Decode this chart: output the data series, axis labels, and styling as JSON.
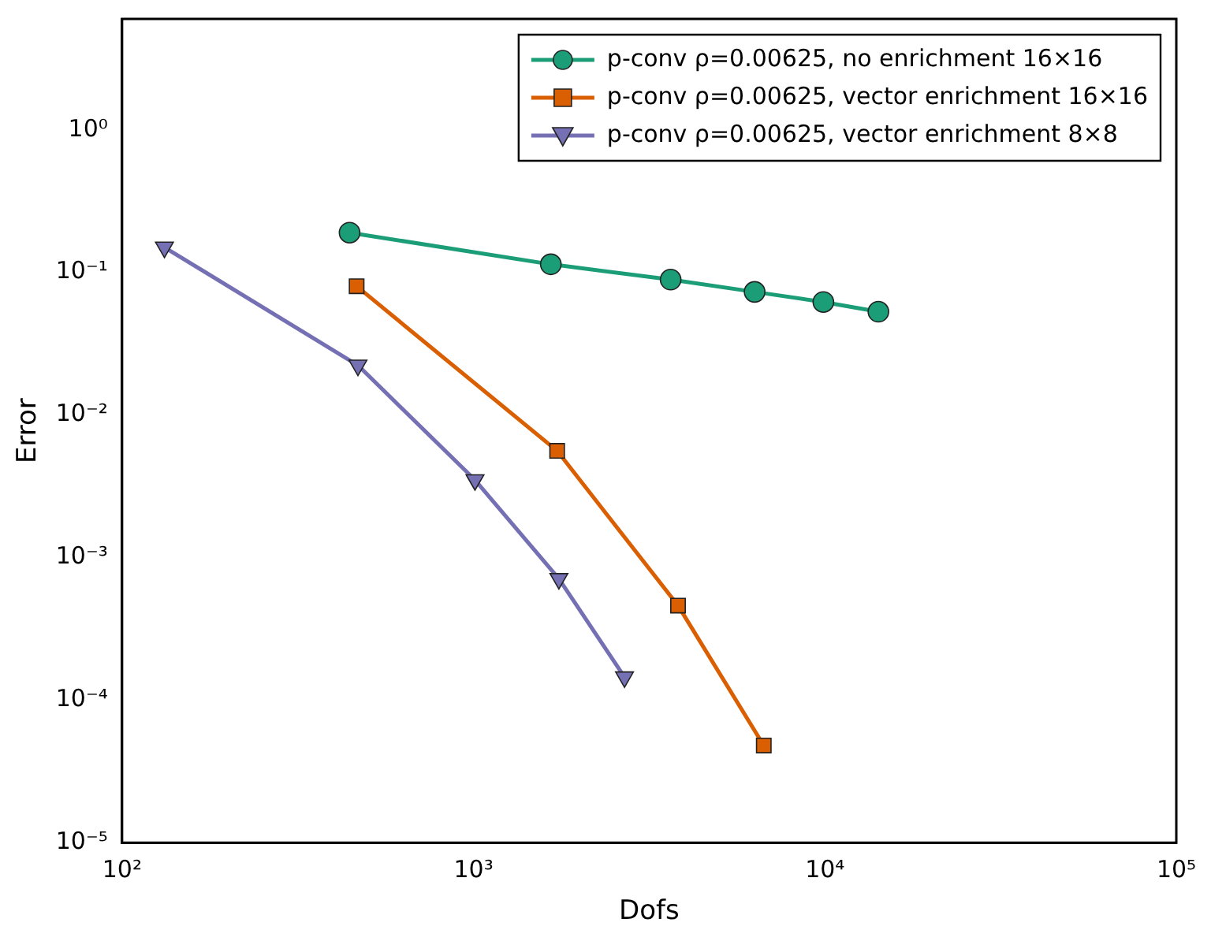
{
  "chart_data": {
    "type": "line",
    "xlabel": "Dofs",
    "ylabel": "Error",
    "log": "xy",
    "grid": false,
    "legend": "top right",
    "line_style": "solid",
    "xlim": [
      100,
      100000
    ],
    "ylim": [
      1e-05,
      6
    ],
    "xticks": [
      {
        "value": 100,
        "label": "10²"
      },
      {
        "value": 1000,
        "label": "10³"
      },
      {
        "value": 10000,
        "label": "10⁴"
      },
      {
        "value": 100000,
        "label": "10⁵"
      }
    ],
    "yticks": [
      {
        "value": 1e-05,
        "label": "10⁻⁵"
      },
      {
        "value": 0.0001,
        "label": "10⁻⁴"
      },
      {
        "value": 0.001,
        "label": "10⁻³"
      },
      {
        "value": 0.01,
        "label": "10⁻²"
      },
      {
        "value": 0.1,
        "label": "10⁻¹"
      },
      {
        "value": 1,
        "label": "10⁰"
      }
    ],
    "series": [
      {
        "name": "p-conv ρ=0.00625, no enrichment 16×16",
        "color": "#1b9e77",
        "marker": "circle",
        "x": [
          444,
          1660,
          3640,
          6310,
          9900,
          14200
        ],
        "values": [
          0.19,
          0.114,
          0.089,
          0.073,
          0.062,
          0.053
        ]
      },
      {
        "name": "p-conv ρ=0.00625, vector enrichment 16×16",
        "color": "#d95f02",
        "marker": "square",
        "x": [
          465,
          1730,
          3820,
          6700
        ],
        "values": [
          0.08,
          0.0056,
          0.00046,
          4.8e-05
        ]
      },
      {
        "name": "p-conv ρ=0.00625, vector enrichment 8×8",
        "color": "#7570b3",
        "marker": "triangle",
        "x": [
          132,
          469,
          1010,
          1750,
          2690
        ],
        "values": [
          0.15,
          0.0223,
          0.0035,
          0.00071,
          0.000145
        ]
      }
    ]
  }
}
